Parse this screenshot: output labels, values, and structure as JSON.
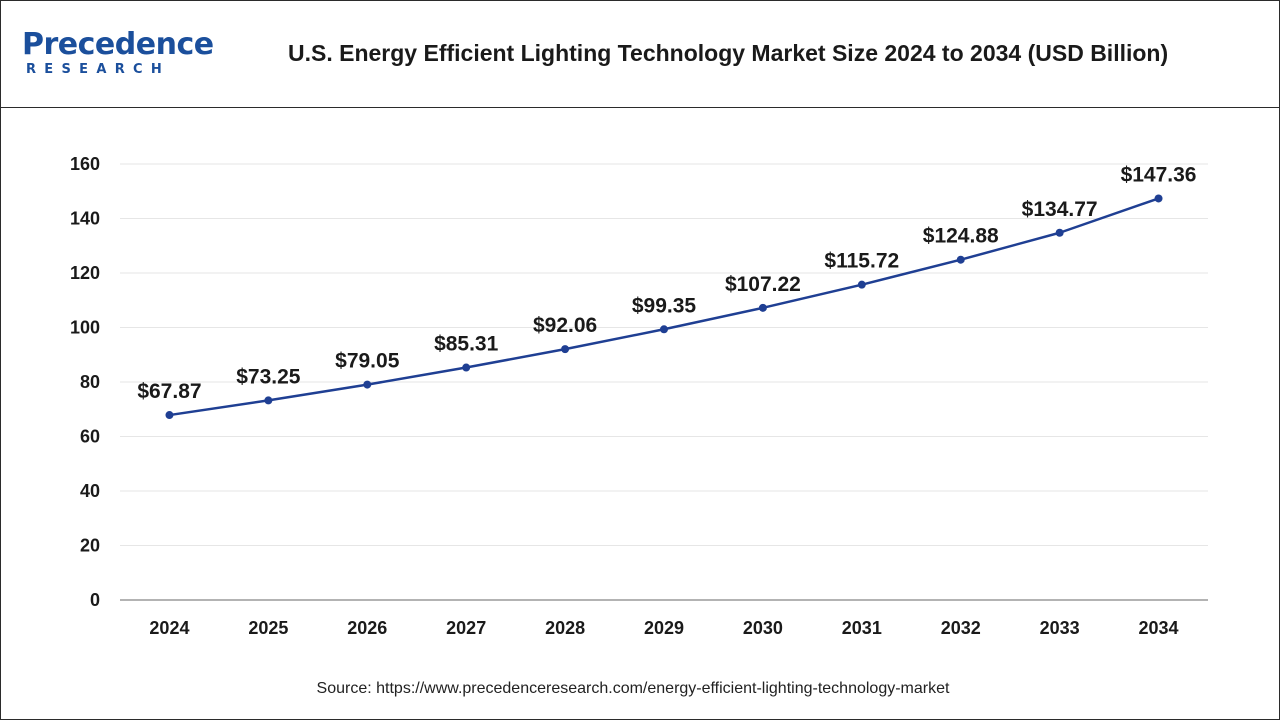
{
  "brand": {
    "name": "recedence",
    "name_initial": "P",
    "subtitle": "RESEARCH",
    "color": "#1b4f9c"
  },
  "header": {
    "title": "U.S. Energy Efficient Lighting Technology Market Size 2024 to 2034 (USD Billion)"
  },
  "footer": {
    "source": "Source: https://www.precedenceresearch.com/energy-efficient-lighting-technology-market"
  },
  "chart_data": {
    "type": "line",
    "title": "U.S. Energy Efficient Lighting Technology Market Size 2024 to 2034 (USD Billion)",
    "xlabel": "",
    "ylabel": "",
    "categories": [
      "2024",
      "2025",
      "2026",
      "2027",
      "2028",
      "2029",
      "2030",
      "2031",
      "2032",
      "2033",
      "2034"
    ],
    "series": [
      {
        "values": [
          67.87,
          73.25,
          79.05,
          85.31,
          92.06,
          99.35,
          107.22,
          115.72,
          124.88,
          134.77,
          147.36
        ],
        "labels": [
          "$67.87",
          "$73.25",
          "$79.05",
          "$85.31",
          "$92.06",
          "$99.35",
          "$107.22",
          "$115.72",
          "$124.88",
          "$134.77",
          "$147.36"
        ],
        "color": "#1f3f93"
      }
    ],
    "yticks": [
      "0",
      "20",
      "40",
      "60",
      "80",
      "100",
      "120",
      "140",
      "160"
    ],
    "ylim": [
      0,
      160
    ],
    "grid": true,
    "legend": "none"
  }
}
